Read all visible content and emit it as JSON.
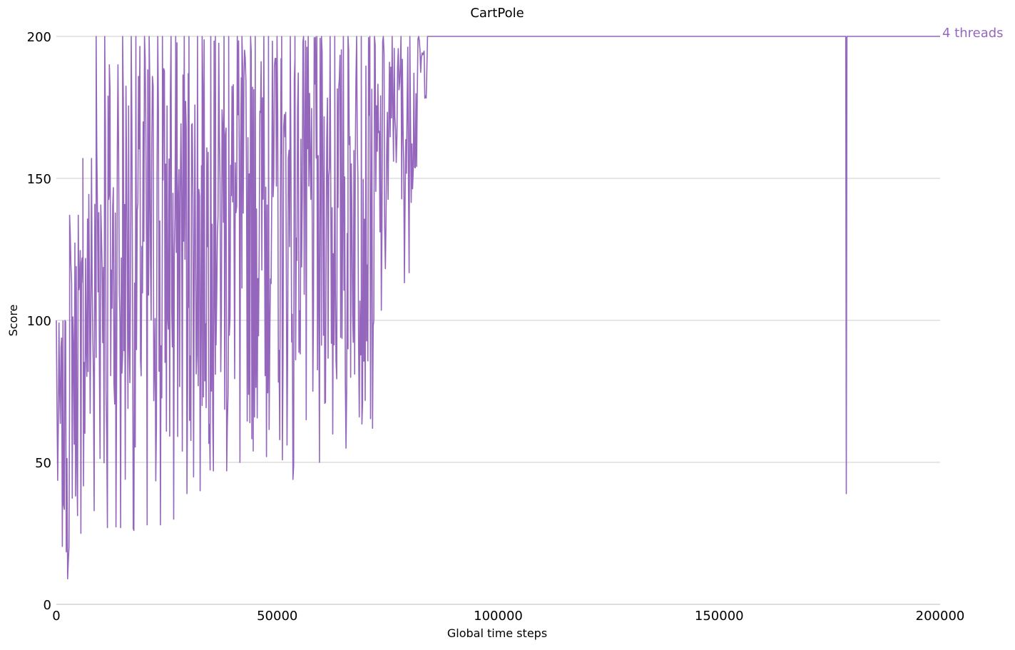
{
  "chart_data": {
    "type": "line",
    "title": "CartPole",
    "xlabel": "Global time steps",
    "ylabel": "Score",
    "xlim": [
      0,
      200000
    ],
    "ylim": [
      0,
      200
    ],
    "x_ticks": [
      0,
      50000,
      100000,
      150000,
      200000
    ],
    "x_tick_labels": [
      "0",
      "50000",
      "100000",
      "150000",
      "200000"
    ],
    "y_ticks": [
      0,
      50,
      100,
      150,
      200
    ],
    "y_tick_labels": [
      "0",
      "50",
      "100",
      "150",
      "200"
    ],
    "grid": "horizontal",
    "series": [
      {
        "name": "4 threads",
        "color": "#9467bd",
        "segments": [
          {
            "x0": 0,
            "x1": 3000,
            "low": 9,
            "high": 100
          },
          {
            "x0": 3000,
            "x1": 6000,
            "low": 25,
            "high": 137
          },
          {
            "x0": 6000,
            "x1": 9000,
            "low": 33,
            "high": 157
          },
          {
            "x0": 9000,
            "x1": 12000,
            "low": 27,
            "high": 200
          },
          {
            "x0": 12000,
            "x1": 15000,
            "low": 27,
            "high": 190
          },
          {
            "x0": 15000,
            "x1": 18000,
            "low": 26,
            "high": 200
          },
          {
            "x0": 18000,
            "x1": 21000,
            "low": 28,
            "high": 200
          },
          {
            "x0": 21000,
            "x1": 24000,
            "low": 28,
            "high": 200
          },
          {
            "x0": 24000,
            "x1": 27000,
            "low": 30,
            "high": 200
          },
          {
            "x0": 27000,
            "x1": 30000,
            "low": 39,
            "high": 200
          },
          {
            "x0": 30000,
            "x1": 33000,
            "low": 40,
            "high": 200
          },
          {
            "x0": 33000,
            "x1": 36000,
            "low": 47,
            "high": 200
          },
          {
            "x0": 36000,
            "x1": 39000,
            "low": 47,
            "high": 200
          },
          {
            "x0": 39000,
            "x1": 42000,
            "low": 50,
            "high": 200
          },
          {
            "x0": 42000,
            "x1": 45000,
            "low": 54,
            "high": 200
          },
          {
            "x0": 45000,
            "x1": 48000,
            "low": 52,
            "high": 200
          },
          {
            "x0": 48000,
            "x1": 51000,
            "low": 58,
            "high": 200
          },
          {
            "x0": 51000,
            "x1": 54000,
            "low": 44,
            "high": 200
          },
          {
            "x0": 54000,
            "x1": 57000,
            "low": 65,
            "high": 200
          },
          {
            "x0": 57000,
            "x1": 60000,
            "low": 50,
            "high": 200
          },
          {
            "x0": 60000,
            "x1": 63000,
            "low": 60,
            "high": 200
          },
          {
            "x0": 63000,
            "x1": 66000,
            "low": 55,
            "high": 200
          },
          {
            "x0": 66000,
            "x1": 69000,
            "low": 66,
            "high": 200
          },
          {
            "x0": 69000,
            "x1": 72000,
            "low": 62,
            "high": 200
          },
          {
            "x0": 72000,
            "x1": 74000,
            "low": 77,
            "high": 200
          },
          {
            "x0": 74000,
            "x1": 76000,
            "low": 93,
            "high": 200
          },
          {
            "x0": 76000,
            "x1": 78000,
            "low": 145,
            "high": 200
          },
          {
            "x0": 78000,
            "x1": 80000,
            "low": 113,
            "high": 200
          },
          {
            "x0": 80000,
            "x1": 82000,
            "low": 140,
            "high": 200
          },
          {
            "x0": 82000,
            "x1": 84000,
            "low": 177,
            "high": 200
          },
          {
            "x0": 84000,
            "x1": 178500,
            "low": 200,
            "high": 200
          },
          {
            "x0": 178500,
            "x1": 179200,
            "low": 39,
            "high": 200
          },
          {
            "x0": 179200,
            "x1": 200000,
            "low": 200,
            "high": 200
          }
        ]
      }
    ]
  }
}
